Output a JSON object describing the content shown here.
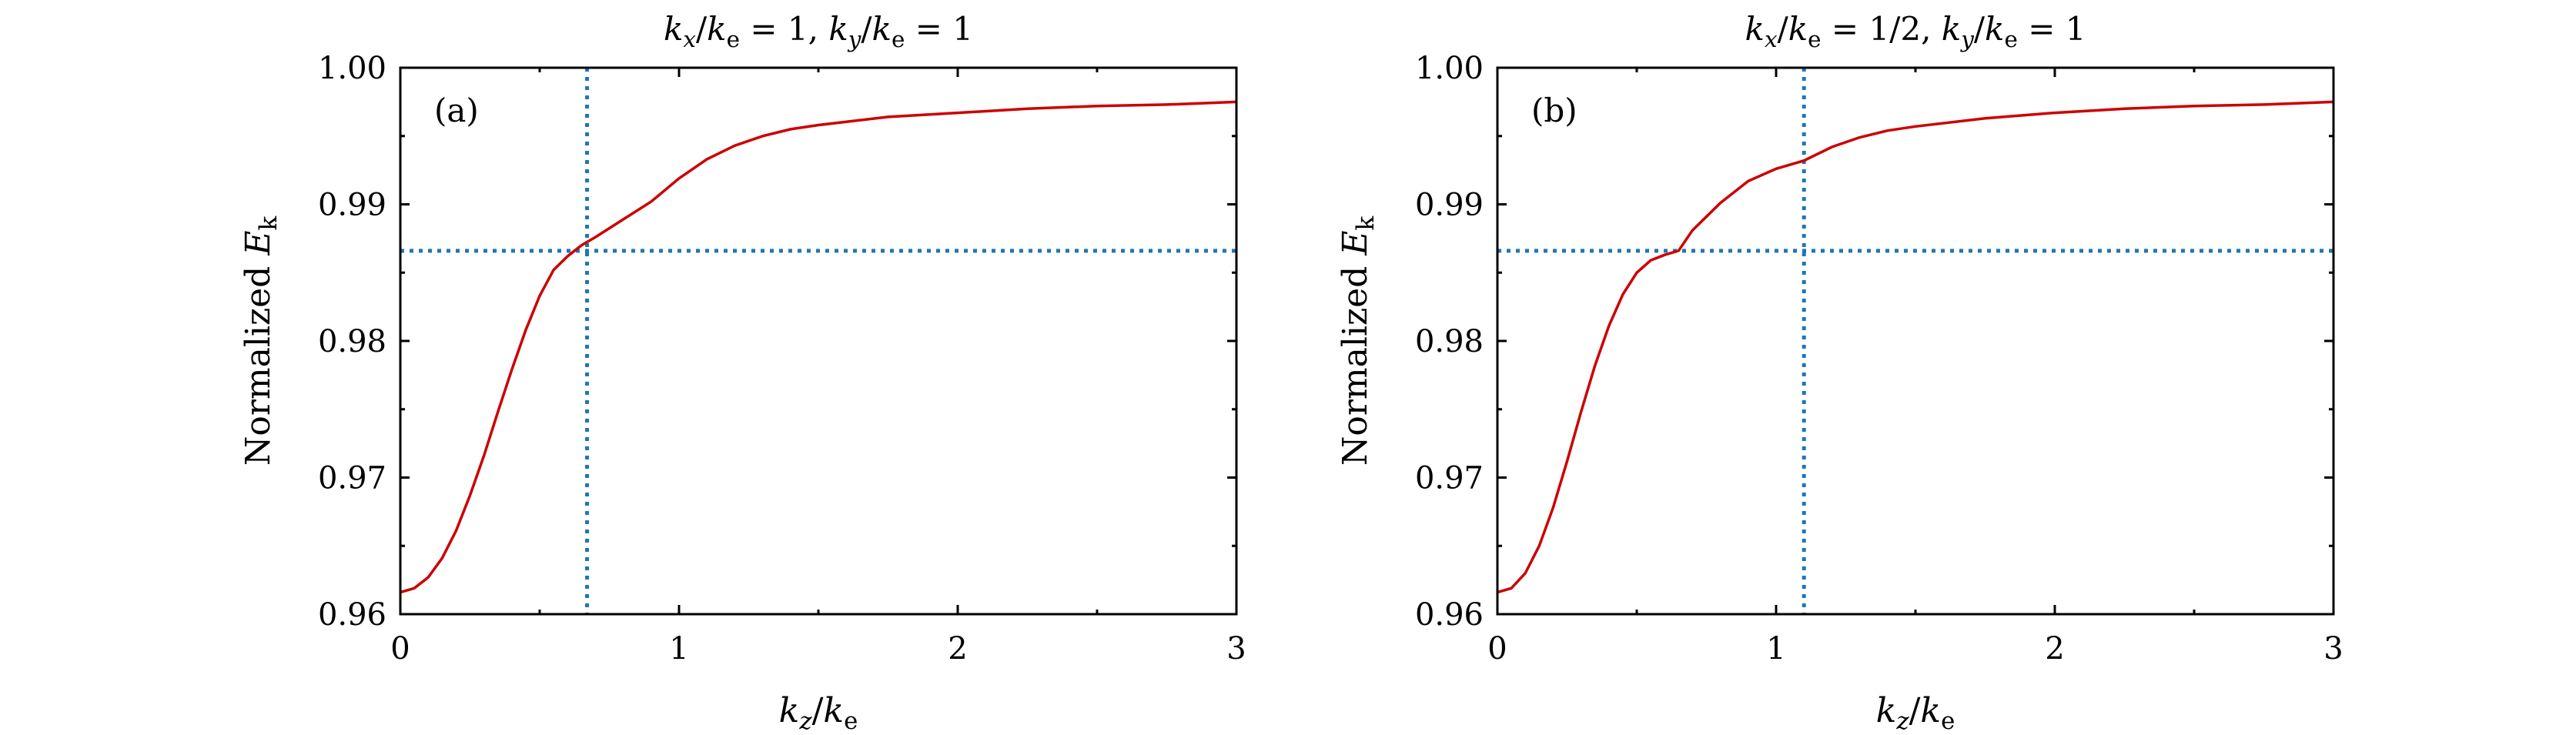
{
  "chart_data": [
    {
      "type": "line",
      "panel_label": "(a)",
      "title": "k_x/k_e = 1, k_y/k_e = 1",
      "xlabel": "k_z/k_e",
      "ylabel": "Normalized E_k",
      "xlim": [
        0,
        3
      ],
      "ylim": [
        0.96,
        1.0
      ],
      "x_ticks": [
        "0",
        "1",
        "2",
        "3"
      ],
      "y_ticks": [
        "0.96",
        "0.97",
        "0.98",
        "0.99",
        "1.00"
      ],
      "grid": false,
      "series": [
        {
          "color": "#cc0000",
          "style": "solid",
          "x": [
            0,
            0.05,
            0.1,
            0.15,
            0.2,
            0.25,
            0.3,
            0.35,
            0.4,
            0.45,
            0.5,
            0.55,
            0.6,
            0.65,
            0.7,
            0.8,
            0.9,
            1.0,
            1.1,
            1.2,
            1.3,
            1.4,
            1.5,
            1.75,
            2.0,
            2.25,
            2.5,
            2.75,
            3.0
          ],
          "y": [
            0.9616,
            0.9619,
            0.9627,
            0.9641,
            0.9661,
            0.9687,
            0.9716,
            0.9748,
            0.9779,
            0.9808,
            0.9833,
            0.9852,
            0.9862,
            0.987,
            0.9876,
            0.9889,
            0.9902,
            0.9919,
            0.9933,
            0.9943,
            0.995,
            0.9955,
            0.9958,
            0.9964,
            0.9967,
            0.997,
            0.9972,
            0.9973,
            0.9975
          ]
        }
      ],
      "guides": {
        "hline_y": 0.9866,
        "vline_x": 0.67,
        "color": "#1f77b4",
        "style": "dotted"
      }
    },
    {
      "type": "line",
      "panel_label": "(b)",
      "title": "k_x/k_e = 1/2, k_y/k_e = 1",
      "xlabel": "k_z/k_e",
      "ylabel": "Normalized E_k",
      "xlim": [
        0,
        3
      ],
      "ylim": [
        0.96,
        1.0
      ],
      "x_ticks": [
        "0",
        "1",
        "2",
        "3"
      ],
      "y_ticks": [
        "0.96",
        "0.97",
        "0.98",
        "0.99",
        "1.00"
      ],
      "grid": false,
      "series": [
        {
          "color": "#cc0000",
          "style": "solid",
          "x": [
            0,
            0.05,
            0.1,
            0.15,
            0.2,
            0.25,
            0.3,
            0.35,
            0.4,
            0.45,
            0.5,
            0.55,
            0.6,
            0.65,
            0.7,
            0.8,
            0.9,
            1.0,
            1.1,
            1.2,
            1.3,
            1.4,
            1.5,
            1.75,
            2.0,
            2.25,
            2.5,
            2.75,
            3.0
          ],
          "y": [
            0.9616,
            0.9619,
            0.963,
            0.965,
            0.9678,
            0.9712,
            0.9748,
            0.9782,
            0.9811,
            0.9834,
            0.985,
            0.9859,
            0.9863,
            0.9866,
            0.9881,
            0.9901,
            0.9917,
            0.9926,
            0.9932,
            0.9942,
            0.9949,
            0.9954,
            0.9957,
            0.9963,
            0.9967,
            0.997,
            0.9972,
            0.9973,
            0.9975
          ]
        }
      ],
      "guides": {
        "hline_y": 0.9866,
        "vline_x": 1.1,
        "color": "#1f77b4",
        "style": "dotted"
      }
    }
  ]
}
